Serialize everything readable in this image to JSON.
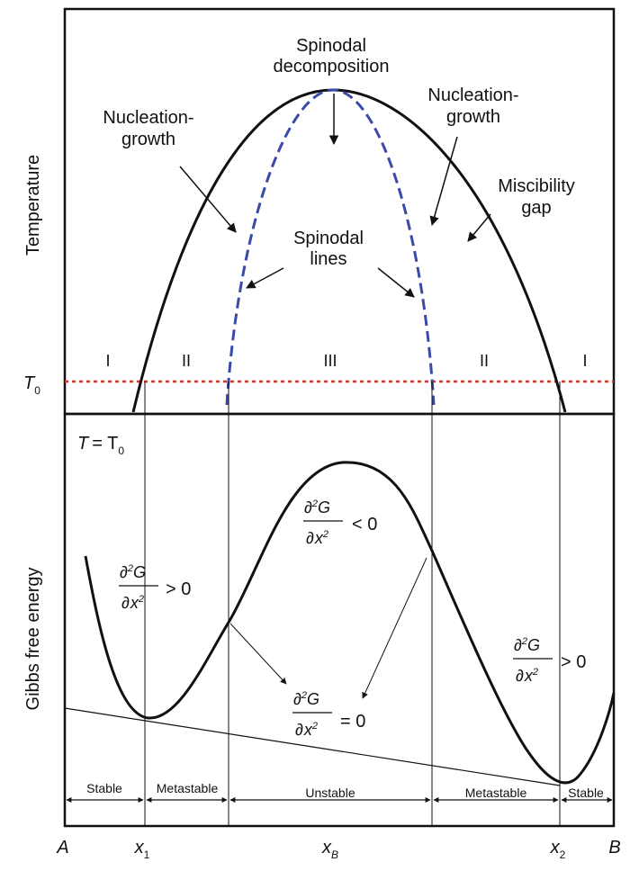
{
  "top_panel": {
    "ylabel": "Temperature",
    "t0_label": "T",
    "t0_sub": "0",
    "annotations": {
      "spinodal_decomposition_1": "Spinodal",
      "spinodal_decomposition_2": "decomposition",
      "nucleation_left_1": "Nucleation-",
      "nucleation_left_2": "growth",
      "nucleation_right_1": "Nucleation-",
      "nucleation_right_2": "growth",
      "miscibility_1": "Miscibility",
      "miscibility_2": "gap",
      "spinodal_lines_1": "Spinodal",
      "spinodal_lines_2": "lines"
    },
    "regions": [
      "I",
      "II",
      "III",
      "II",
      "I"
    ]
  },
  "bottom_panel": {
    "ylabel": "Gibbs free energy",
    "condition_T": "T",
    "condition_eq": "= T",
    "condition_sub": "0",
    "deriv_numerator": "∂",
    "deriv_num_sup": "2",
    "deriv_num_var": "G",
    "deriv_denominator": "∂",
    "deriv_den_var": "x",
    "deriv_den_sup": "2",
    "cond_positive": "> 0",
    "cond_negative": "< 0",
    "cond_zero": "= 0",
    "zones": [
      "Stable",
      "Metastable",
      "Unstable",
      "Metastable",
      "Stable"
    ]
  },
  "x_axis": {
    "left_end": "A",
    "right_end": "B",
    "x1": "x",
    "x1_sub": "1",
    "xB": "x",
    "xB_sub": "B",
    "x2": "x",
    "x2_sub": "2"
  },
  "colors": {
    "curve": "#111111",
    "spinodal": "#3a4aa8",
    "t0_line": "#e0301e"
  }
}
